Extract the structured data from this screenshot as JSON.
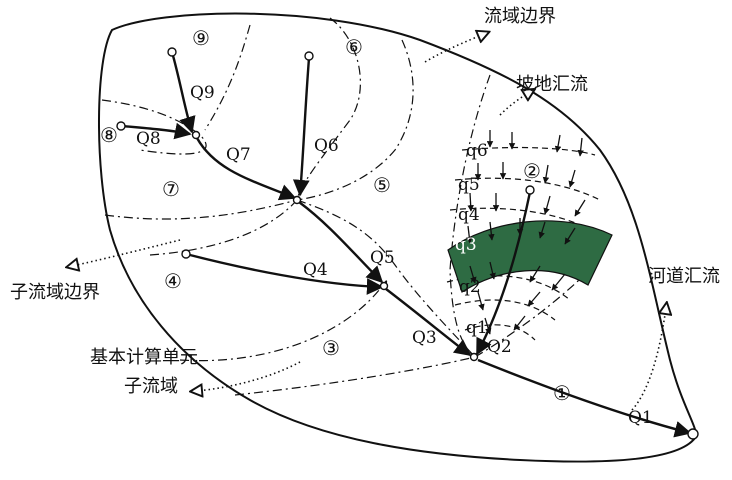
{
  "annotations": {
    "watershed_boundary": "流域边界",
    "slope_confluence": "坡地汇流",
    "channel_confluence": "河道汇流",
    "subbasin_boundary": "子流域边界",
    "basic_unit_line1": "基本计算单元",
    "basic_unit_line2": "子流域"
  },
  "subbasins": [
    "①",
    "②",
    "③",
    "④",
    "⑤",
    "⑥",
    "⑦",
    "⑧",
    "⑨"
  ],
  "channel_flows": [
    "Q1",
    "Q2",
    "Q3",
    "Q4",
    "Q5",
    "Q6",
    "Q7",
    "Q8",
    "Q9"
  ],
  "slope_flows": [
    "q1",
    "q2",
    "q3",
    "q4",
    "q5",
    "q6"
  ],
  "colors": {
    "highlight_band": "#2e6b43",
    "line": "#111111"
  }
}
